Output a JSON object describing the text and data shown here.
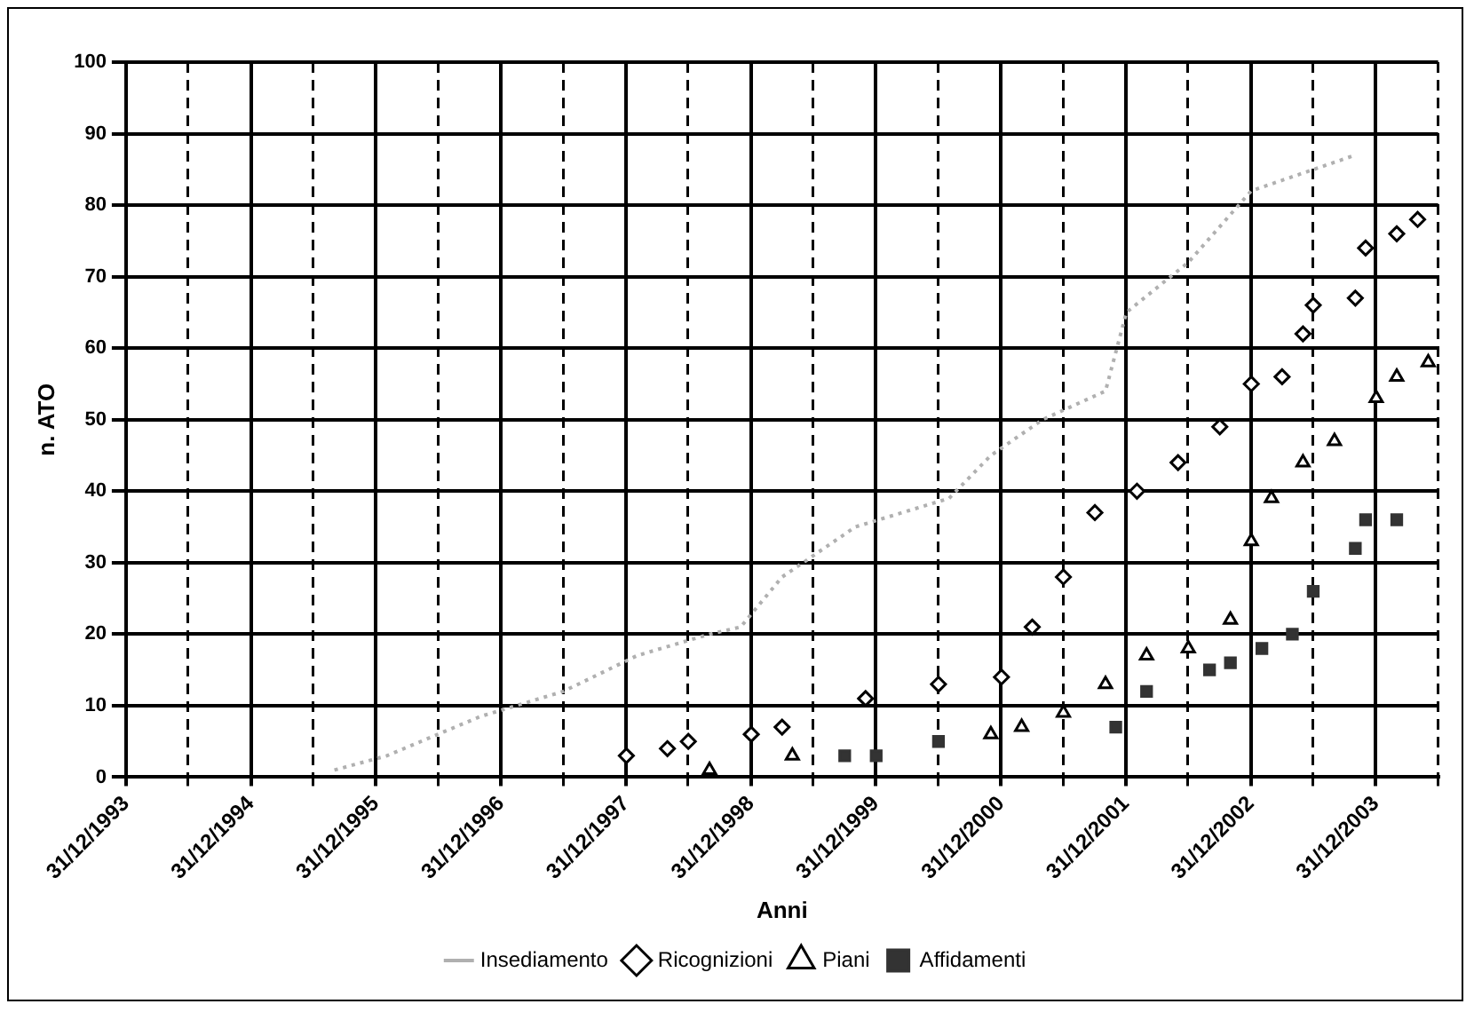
{
  "chart_data": {
    "type": "line",
    "xlabel": "Anni",
    "ylabel": "n. ATO",
    "xlim": [
      "1993-12-31",
      "2004-06-30"
    ],
    "ylim": [
      0,
      100
    ],
    "xticks": [
      {
        "value": "1993-12-31",
        "label": "31/12/1993"
      },
      {
        "value": "1994-06-30",
        "label": null
      },
      {
        "value": "1994-12-31",
        "label": "31/12/1994"
      },
      {
        "value": "1995-06-30",
        "label": null
      },
      {
        "value": "1995-12-31",
        "label": "31/12/1995"
      },
      {
        "value": "1996-06-30",
        "label": null
      },
      {
        "value": "1996-12-31",
        "label": "31/12/1996"
      },
      {
        "value": "1997-06-30",
        "label": null
      },
      {
        "value": "1997-12-31",
        "label": "31/12/1997"
      },
      {
        "value": "1998-06-30",
        "label": null
      },
      {
        "value": "1998-12-31",
        "label": "31/12/1998"
      },
      {
        "value": "1999-06-30",
        "label": null
      },
      {
        "value": "1999-12-31",
        "label": "31/12/1999"
      },
      {
        "value": "2000-06-30",
        "label": null
      },
      {
        "value": "2000-12-31",
        "label": "31/12/2000"
      },
      {
        "value": "2001-06-30",
        "label": null
      },
      {
        "value": "2001-12-31",
        "label": "31/12/2001"
      },
      {
        "value": "2002-06-30",
        "label": null
      },
      {
        "value": "2002-12-31",
        "label": "31/12/2002"
      },
      {
        "value": "2003-06-30",
        "label": null
      },
      {
        "value": "2003-12-31",
        "label": "31/12/2003"
      },
      {
        "value": "2004-06-30",
        "label": null
      }
    ],
    "yticks": [
      0,
      10,
      20,
      30,
      40,
      50,
      60,
      70,
      80,
      90,
      100
    ],
    "grid": true,
    "legend": "bottom",
    "series": [
      {
        "name": "Insediamento",
        "color": "#b0b0b0",
        "marker": "none",
        "line_style": "dotted",
        "x": [
          "1995-09",
          "1996-02",
          "1996-11",
          "1997-07",
          "1998-02",
          "1998-09",
          "1998-12",
          "1999-04",
          "1999-11",
          "2000-08",
          "2000-12",
          "2001-05",
          "2001-11",
          "2002-01",
          "2002-07",
          "2003-01",
          "2003-11"
        ],
        "values": [
          1,
          3,
          8.5,
          12,
          17,
          20,
          21,
          28,
          35,
          39,
          45,
          50,
          54,
          65,
          72,
          82,
          87
        ]
      },
      {
        "name": "Ricognizioni",
        "type": "scatter",
        "color": "#000000",
        "marker": "diamond",
        "x": [
          "1998-01",
          "1998-05",
          "1998-07",
          "1999-01",
          "1999-04",
          "1999-12",
          "2000-07",
          "2001-01",
          "2001-04",
          "2001-07",
          "2001-10",
          "2002-02",
          "2002-06",
          "2002-10",
          "2003-01",
          "2003-04",
          "2003-06",
          "2003-07",
          "2003-11",
          "2003-12",
          "2004-03",
          "2004-05"
        ],
        "values": [
          3,
          4,
          5,
          6,
          7,
          11,
          13,
          14,
          21,
          28,
          37,
          40,
          44,
          49,
          55,
          56,
          62,
          66,
          67,
          74,
          76,
          78
        ]
      },
      {
        "name": "Piani",
        "type": "scatter",
        "color": "#000000",
        "marker": "triangle",
        "x": [
          "1998-09",
          "1999-05",
          "2000-12",
          "2001-03",
          "2001-07",
          "2001-11",
          "2002-03",
          "2002-07",
          "2002-11",
          "2003-01",
          "2003-03",
          "2003-06",
          "2003-09",
          "2004-01",
          "2004-03",
          "2004-06"
        ],
        "values": [
          1,
          3,
          6,
          7,
          9,
          13,
          17,
          18,
          22,
          33,
          39,
          44,
          47,
          53,
          56,
          58
        ]
      },
      {
        "name": "Affidamenti",
        "type": "scatter",
        "color": "#333333",
        "marker": "square",
        "x": [
          "1999-10",
          "2000-01",
          "2000-07",
          "2001-12",
          "2002-03",
          "2002-09",
          "2002-11",
          "2003-02",
          "2003-05",
          "2003-07",
          "2003-11",
          "2003-12",
          "2004-03"
        ],
        "values": [
          3,
          3,
          5,
          7,
          12,
          15,
          16,
          18,
          20,
          26,
          32,
          36,
          36
        ]
      }
    ]
  }
}
